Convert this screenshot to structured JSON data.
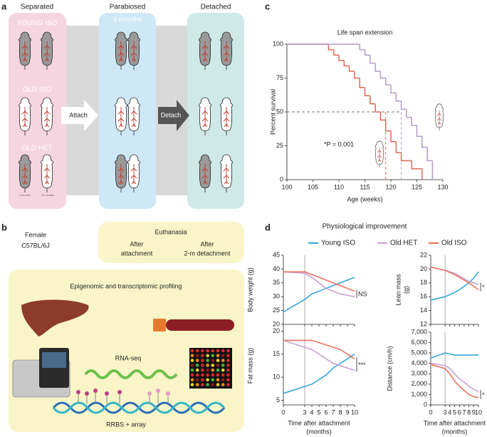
{
  "panel_labels": [
    "a",
    "b",
    "c",
    "d"
  ],
  "panel_a": {
    "columns": [
      "Separated",
      "Parabiosed",
      "Detached"
    ],
    "groups": [
      "YOUNG ISO",
      "OLD ISO",
      "OLD HET"
    ],
    "duration": "3 months",
    "ages": [
      "4 months",
      "20 months"
    ],
    "arrows": [
      "Attach",
      "Detach"
    ]
  },
  "panel_b": {
    "strain": [
      "Female",
      "C57BL/6J"
    ],
    "euthanasia": {
      "title": "Euthanasia",
      "times": [
        [
          "After",
          "attachment"
        ],
        [
          "After",
          "2-m detachment"
        ]
      ]
    },
    "profiling": {
      "title": "Epigenomic and transcriptomic profiling",
      "methods": [
        "RNA-seq",
        "RRBS + array"
      ]
    }
  },
  "panel_d": {
    "title": "Physiological improvement",
    "legend": [
      {
        "name": "Young ISO",
        "color": "#35a7d8"
      },
      {
        "name": "Old HET",
        "color": "#c9a0d3"
      },
      {
        "name": "Old ISO",
        "color": "#e8735e"
      }
    ]
  },
  "chart_data": [
    {
      "type": "step",
      "title": "Life span extension",
      "xlabel": "Age (weeks)",
      "ylabel": "Percent survival",
      "xlim": [
        100,
        130
      ],
      "xticks": [
        100,
        105,
        110,
        115,
        120,
        125,
        130
      ],
      "ylim": [
        0,
        100
      ],
      "yticks": [
        0,
        25,
        50,
        75,
        100
      ],
      "series": [
        {
          "color": "#e06a55",
          "x": [
            100,
            108,
            109,
            110,
            111,
            112,
            113,
            114,
            115,
            116,
            117,
            118,
            119,
            120,
            121,
            122,
            124,
            126
          ],
          "values": [
            100,
            96,
            92,
            88,
            84,
            80,
            75,
            68,
            62,
            56,
            50,
            44,
            36,
            28,
            20,
            14,
            8,
            0
          ]
        },
        {
          "color": "#b59acb",
          "x": [
            100,
            114,
            115,
            116,
            117,
            118,
            119,
            120,
            121,
            122,
            123,
            124,
            125,
            126,
            127,
            128
          ],
          "values": [
            100,
            96,
            92,
            86,
            80,
            75,
            70,
            64,
            58,
            52,
            46,
            40,
            32,
            24,
            14,
            0
          ]
        }
      ],
      "reference_lines": {
        "y": 50,
        "x": [
          119,
          122
        ]
      },
      "annotation": "*P = 0.001"
    },
    {
      "type": "line",
      "ylabel": "Body weight (g)",
      "x": [
        0,
        3,
        4,
        5,
        6,
        7,
        8,
        9,
        10
      ],
      "xlim": [
        0,
        10
      ],
      "xticks": [
        0,
        3,
        4,
        5,
        6,
        7,
        8,
        9,
        10
      ],
      "ylim": [
        20,
        45
      ],
      "yticks": [
        20,
        25,
        30,
        35,
        40,
        45
      ],
      "vline": 3,
      "annotation": "NS",
      "series": [
        {
          "color": "#35a7d8",
          "values": [
            24.5,
            29,
            31,
            32,
            33,
            34,
            35,
            36,
            37
          ]
        },
        {
          "color": "#c9a0d3",
          "values": [
            39,
            38.5,
            37,
            35,
            33,
            32,
            31,
            30.5,
            30
          ]
        },
        {
          "color": "#e8735e",
          "values": [
            39,
            39,
            38,
            37,
            36,
            35,
            34,
            33,
            32
          ]
        }
      ]
    },
    {
      "type": "line",
      "ylabel": [
        "Lean mass",
        "(g)"
      ],
      "x": [
        0,
        3,
        4,
        5,
        6,
        7,
        8,
        9,
        10
      ],
      "xlim": [
        0,
        10
      ],
      "xticks": [
        0,
        3,
        4,
        5,
        6,
        7,
        8,
        9,
        10
      ],
      "ylim": [
        12,
        22
      ],
      "yticks": [
        12,
        14,
        16,
        18,
        20,
        22
      ],
      "vline": 3,
      "annotation": "*",
      "series": [
        {
          "color": "#35a7d8",
          "values": [
            15.5,
            16,
            16.3,
            16.6,
            17,
            17.5,
            18,
            18.7,
            19.6
          ]
        },
        {
          "color": "#c9a0d3",
          "values": [
            20.3,
            19.8,
            19.6,
            19.4,
            19,
            18.6,
            18.2,
            18,
            17.8
          ]
        },
        {
          "color": "#e8735e",
          "values": [
            20.3,
            19.8,
            19.5,
            19.2,
            18.8,
            18.4,
            18,
            17.5,
            17
          ]
        }
      ]
    },
    {
      "type": "line",
      "ylabel": "Fat mass (g)",
      "xlabel": [
        "Time after attachment",
        "(months)"
      ],
      "x": [
        0,
        3,
        4,
        5,
        6,
        7,
        8,
        9,
        10
      ],
      "xlim": [
        0,
        10
      ],
      "xticks": [
        0,
        3,
        4,
        5,
        6,
        7,
        8,
        9,
        10
      ],
      "ylim": [
        4,
        21
      ],
      "yticks": [
        5,
        10,
        15,
        20
      ],
      "vline": 3,
      "annotation": "***",
      "series": [
        {
          "color": "#35a7d8",
          "values": [
            6.5,
            8,
            8.5,
            9.5,
            10.5,
            12,
            13,
            14,
            15
          ]
        },
        {
          "color": "#c9a0d3",
          "values": [
            18,
            16.5,
            16,
            15,
            14,
            13,
            12.5,
            12,
            11.5
          ]
        },
        {
          "color": "#e8735e",
          "values": [
            18,
            18,
            18,
            17.5,
            17,
            16.5,
            16,
            15,
            14
          ]
        }
      ]
    },
    {
      "type": "line",
      "ylabel": "Distance (cm/h)",
      "xlabel": [
        "Time after attachment",
        "(months)"
      ],
      "x": [
        0,
        3,
        4,
        5,
        6,
        7,
        8,
        9,
        10
      ],
      "xlim": [
        0,
        10
      ],
      "xticks": [
        0,
        3,
        4,
        5,
        6,
        7,
        8,
        9,
        10
      ],
      "ylim": [
        0,
        7000
      ],
      "yticks": [
        0,
        {
          "value": 1000,
          "label": "1,000"
        },
        {
          "value": 2000,
          "label": "2,000"
        },
        {
          "value": 3000,
          "label": "3,000"
        },
        {
          "value": 4000,
          "label": "4,000"
        },
        {
          "value": 5000,
          "label": "5,000"
        },
        {
          "value": 6000,
          "label": "6,000"
        },
        {
          "value": 7000,
          "label": "7,000"
        }
      ],
      "vline": 3,
      "annotation": "*",
      "series": [
        {
          "color": "#35a7d8",
          "values": [
            4500,
            5000,
            4900,
            4800,
            4800,
            4800,
            4800,
            4800,
            4800
          ]
        },
        {
          "color": "#c9a0d3",
          "values": [
            4000,
            3800,
            3500,
            3000,
            2500,
            2200,
            1800,
            1500,
            1300
          ]
        },
        {
          "color": "#e8735e",
          "values": [
            3900,
            3500,
            3000,
            2300,
            1800,
            1400,
            1000,
            800,
            700
          ]
        }
      ]
    }
  ]
}
